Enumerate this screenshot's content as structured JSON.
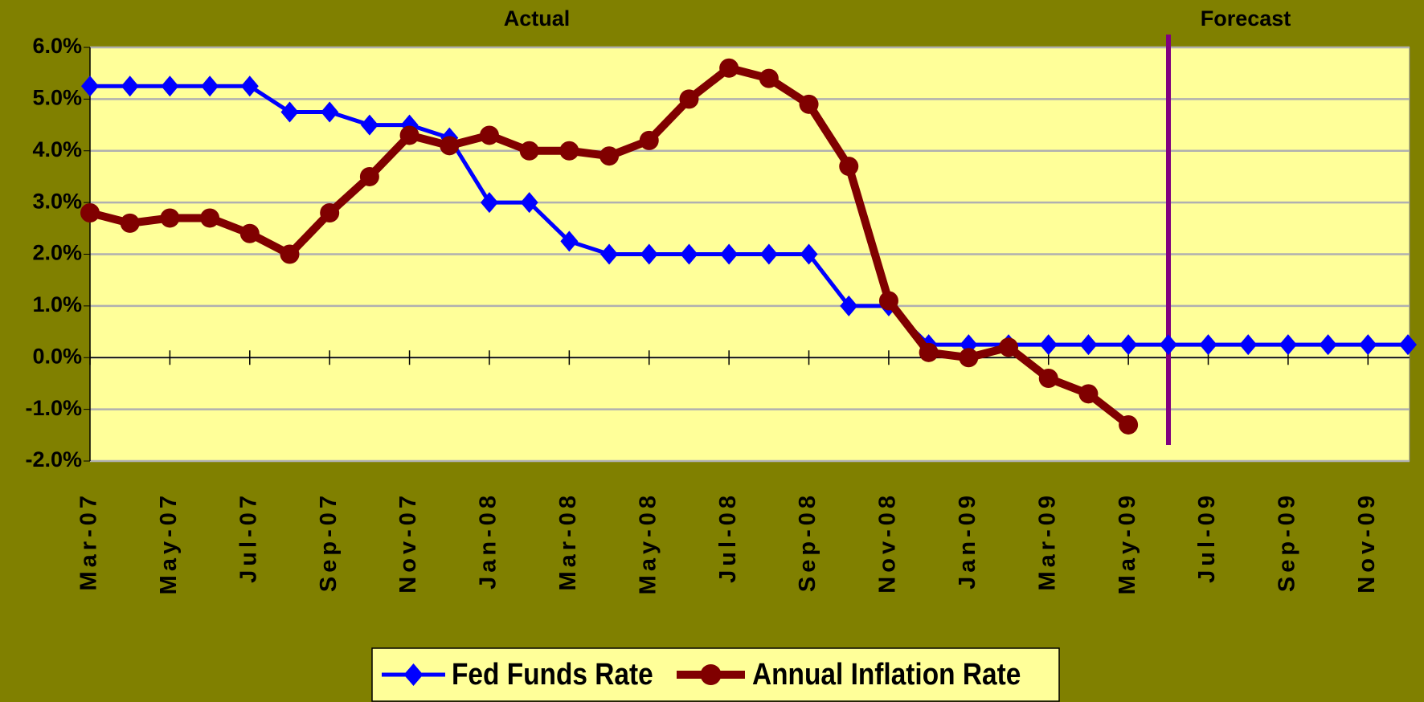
{
  "chart_data": {
    "type": "line",
    "annotations": [
      "Actual",
      "Forecast"
    ],
    "categories": [
      "Mar-07",
      null,
      "May-07",
      null,
      "Jul-07",
      null,
      "Sep-07",
      null,
      "Nov-07",
      null,
      "Jan-08",
      null,
      "Mar-08",
      null,
      "May-08",
      null,
      "Jul-08",
      null,
      "Sep-08",
      null,
      "Nov-08",
      null,
      "Jan-09",
      null,
      "Mar-09",
      null,
      "May-09",
      null,
      "Jul-09",
      null,
      "Sep-09",
      null,
      "Nov-09",
      null
    ],
    "series": [
      {
        "name": "Fed Funds Rate",
        "color": "#0000ff",
        "marker": "diamond",
        "values": [
          5.25,
          5.25,
          5.25,
          5.25,
          5.25,
          4.75,
          4.75,
          4.5,
          4.5,
          4.25,
          3.0,
          3.0,
          2.25,
          2.0,
          2.0,
          2.0,
          2.0,
          2.0,
          2.0,
          1.0,
          1.0,
          0.25,
          0.25,
          0.25,
          0.25,
          0.25,
          0.25,
          0.25,
          0.25,
          0.25,
          0.25,
          0.25,
          0.25,
          0.25
        ]
      },
      {
        "name": "Annual Inflation Rate",
        "color": "#800000",
        "marker": "circle",
        "values": [
          2.8,
          2.6,
          2.7,
          2.7,
          2.4,
          2.0,
          2.8,
          3.5,
          4.3,
          4.1,
          4.3,
          4.0,
          4.0,
          3.9,
          4.2,
          5.0,
          5.6,
          5.4,
          4.9,
          3.7,
          1.1,
          0.1,
          0.0,
          0.2,
          -0.4,
          -0.7,
          -1.3,
          null,
          null,
          null,
          null,
          null,
          null,
          null
        ]
      }
    ],
    "ylim": [
      -2,
      6
    ],
    "yticks": [
      {
        "value": -2,
        "label": "-2.0%"
      },
      {
        "value": -1,
        "label": "-1.0%"
      },
      {
        "value": 0,
        "label": "0.0%"
      },
      {
        "value": 1,
        "label": "1.0%"
      },
      {
        "value": 2,
        "label": "2.0%"
      },
      {
        "value": 3,
        "label": "3.0%"
      },
      {
        "value": 4,
        "label": "4.0%"
      },
      {
        "value": 5,
        "label": "5.0%"
      },
      {
        "value": 6,
        "label": "6.0%"
      }
    ],
    "grid": true,
    "legend": "bottom"
  }
}
